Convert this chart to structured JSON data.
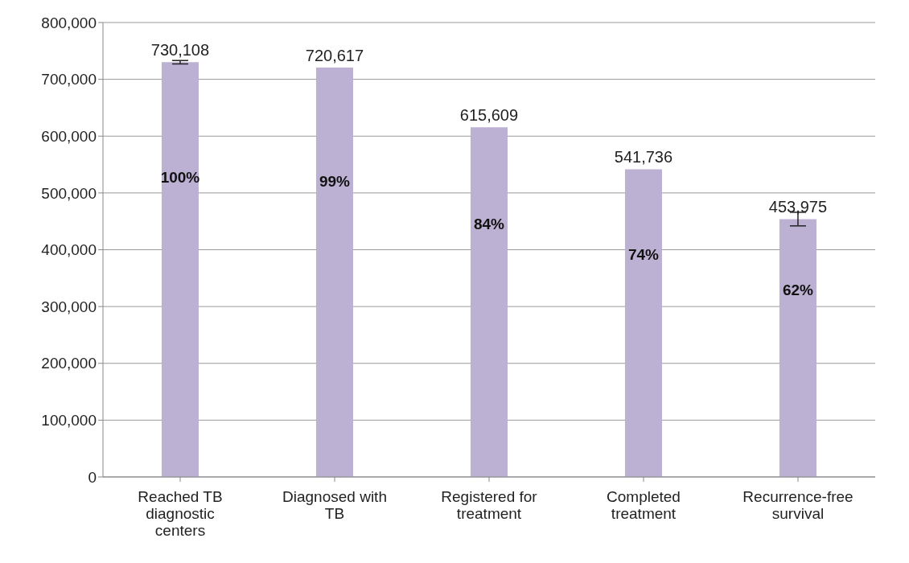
{
  "chart_data": {
    "type": "bar",
    "categories": [
      "Reached TB diagnostic centers",
      "Diagnosed with TB",
      "Registered for treatment",
      "Completed treatment",
      "Recurrence-free survival"
    ],
    "values": [
      730108,
      720617,
      615609,
      541736,
      453975
    ],
    "errors": [
      3000,
      null,
      null,
      null,
      12000
    ],
    "color": "#bcb0d3",
    "ylim": [
      0,
      800000
    ],
    "yticks": [
      {
        "value": 0,
        "label": "0"
      },
      {
        "value": 100000,
        "label": "100,000"
      },
      {
        "value": 200000,
        "label": "200,000"
      },
      {
        "value": 300000,
        "label": "300,000"
      },
      {
        "value": 400000,
        "label": "400,000"
      },
      {
        "value": 500000,
        "label": "500,000"
      },
      {
        "value": 600000,
        "label": "600,000"
      },
      {
        "value": 700000,
        "label": "700,000"
      },
      {
        "value": 800000,
        "label": "800,000"
      }
    ],
    "grid": "y",
    "legend": false,
    "value_labels": [
      "730,108",
      "720,617",
      "615,609",
      "541,736",
      "453,975"
    ],
    "annotations": [
      "100%",
      "99%",
      "84%",
      "74%",
      "62%"
    ]
  }
}
